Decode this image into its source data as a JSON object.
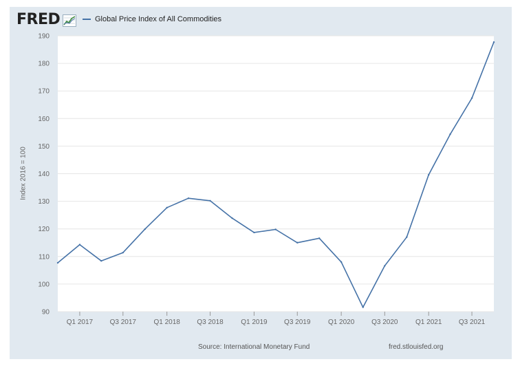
{
  "header": {
    "logo_text": "FRED",
    "logo_icon": "line-chart-icon",
    "legend_label": "Global Price Index of All Commodities"
  },
  "footer": {
    "source": "Source: International Monetary Fund",
    "site": "fred.stlouisfed.org"
  },
  "colors": {
    "frame_bg": "#e1e9f0",
    "series_line": "#4572a7",
    "gridline": "#e6e6e6",
    "text": "#666666"
  },
  "chart_data": {
    "type": "line",
    "title": "",
    "xlabel": "",
    "ylabel": "Index 2016 = 100",
    "ylim": [
      90,
      190
    ],
    "yticks": [
      90,
      100,
      110,
      120,
      130,
      140,
      150,
      160,
      170,
      180,
      190
    ],
    "xlim": [
      "2016-10-01",
      "2021-10-01"
    ],
    "xticks": [
      {
        "label": "Q1 2017",
        "date": "2017-01-01"
      },
      {
        "label": "Q3 2017",
        "date": "2017-07-01"
      },
      {
        "label": "Q1 2018",
        "date": "2018-01-01"
      },
      {
        "label": "Q3 2018",
        "date": "2018-07-01"
      },
      {
        "label": "Q1 2019",
        "date": "2019-01-01"
      },
      {
        "label": "Q3 2019",
        "date": "2019-07-01"
      },
      {
        "label": "Q1 2020",
        "date": "2020-01-01"
      },
      {
        "label": "Q3 2020",
        "date": "2020-07-01"
      },
      {
        "label": "Q1 2021",
        "date": "2021-01-01"
      },
      {
        "label": "Q3 2021",
        "date": "2021-07-01"
      }
    ],
    "grid": true,
    "legend_position": "top-left",
    "series": [
      {
        "name": "Global Price Index of All Commodities",
        "color": "#4572a7",
        "points": [
          {
            "x": "2016-10-01",
            "y": 107.7
          },
          {
            "x": "2017-01-01",
            "y": 114.3
          },
          {
            "x": "2017-04-01",
            "y": 108.4
          },
          {
            "x": "2017-07-01",
            "y": 111.4
          },
          {
            "x": "2017-10-01",
            "y": 119.9
          },
          {
            "x": "2018-01-01",
            "y": 127.7
          },
          {
            "x": "2018-04-01",
            "y": 131.1
          },
          {
            "x": "2018-07-01",
            "y": 130.2
          },
          {
            "x": "2018-10-01",
            "y": 123.9
          },
          {
            "x": "2019-01-01",
            "y": 118.7
          },
          {
            "x": "2019-04-01",
            "y": 119.8
          },
          {
            "x": "2019-07-01",
            "y": 115.0
          },
          {
            "x": "2019-10-01",
            "y": 116.6
          },
          {
            "x": "2020-01-01",
            "y": 108.0
          },
          {
            "x": "2020-04-01",
            "y": 91.6
          },
          {
            "x": "2020-07-01",
            "y": 106.6
          },
          {
            "x": "2020-10-01",
            "y": 117.0
          },
          {
            "x": "2021-01-01",
            "y": 139.6
          },
          {
            "x": "2021-04-01",
            "y": 154.3
          },
          {
            "x": "2021-07-01",
            "y": 167.4
          },
          {
            "x": "2021-10-01",
            "y": 187.7
          }
        ]
      }
    ]
  }
}
